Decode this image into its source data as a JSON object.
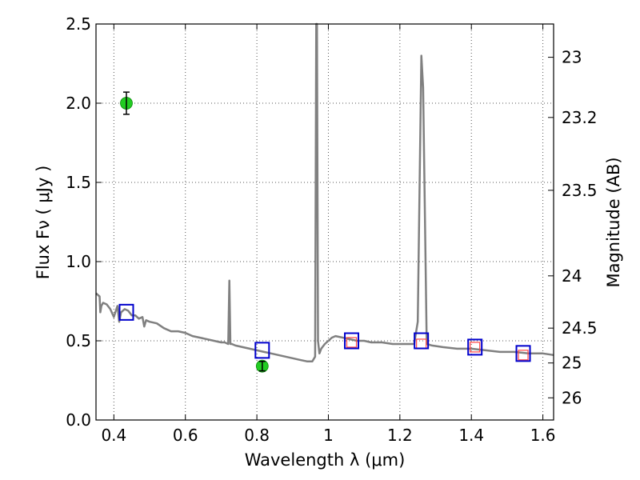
{
  "chart_data": {
    "type": "line",
    "xlabel": "Wavelength  λ (μm)",
    "ylabel": "Flux  Fν  ( μJy )",
    "y2label": "Magnitude (AB)",
    "xlim": [
      0.35,
      1.63
    ],
    "ylim": [
      0.0,
      2.5
    ],
    "grid": true,
    "x_ticks": [
      {
        "value": 0.4,
        "label": "0.4"
      },
      {
        "value": 0.6,
        "label": "0.6"
      },
      {
        "value": 0.8,
        "label": "0.8"
      },
      {
        "value": 1.0,
        "label": "1"
      },
      {
        "value": 1.2,
        "label": "1.2"
      },
      {
        "value": 1.4,
        "label": "1.4"
      },
      {
        "value": 1.6,
        "label": "1.6"
      }
    ],
    "y_ticks": [
      {
        "value": 0.0,
        "label": "0.0"
      },
      {
        "value": 0.5,
        "label": "0.5"
      },
      {
        "value": 1.0,
        "label": "1.0"
      },
      {
        "value": 1.5,
        "label": "1.5"
      },
      {
        "value": 2.0,
        "label": "2.0"
      },
      {
        "value": 2.5,
        "label": "2.5"
      }
    ],
    "y2_ticks": [
      {
        "flux": 2.29,
        "label": "23"
      },
      {
        "flux": 1.91,
        "label": "23.2"
      },
      {
        "flux": 1.45,
        "label": "23.5"
      },
      {
        "flux": 0.91,
        "label": "24"
      },
      {
        "flux": 0.58,
        "label": "24.5"
      },
      {
        "flux": 0.36,
        "label": "25"
      },
      {
        "flux": 0.14,
        "label": "26"
      }
    ],
    "colors": {
      "model": "#808080",
      "model_photometry": "#0000cc",
      "observed_flux": "#22cc22",
      "upper_limit": "#ff4444",
      "grid": "#555555"
    },
    "model_spectrum": {
      "x": [
        0.35,
        0.36,
        0.362,
        0.365,
        0.37,
        0.38,
        0.39,
        0.4,
        0.41,
        0.415,
        0.42,
        0.43,
        0.44,
        0.45,
        0.46,
        0.47,
        0.48,
        0.485,
        0.49,
        0.5,
        0.52,
        0.54,
        0.56,
        0.58,
        0.6,
        0.62,
        0.64,
        0.66,
        0.68,
        0.7,
        0.71,
        0.72,
        0.723,
        0.726,
        0.73,
        0.74,
        0.76,
        0.78,
        0.8,
        0.82,
        0.84,
        0.86,
        0.88,
        0.9,
        0.92,
        0.94,
        0.955,
        0.963,
        0.966,
        0.968,
        0.971,
        0.975,
        0.98,
        0.99,
        1.0,
        1.01,
        1.02,
        1.04,
        1.06,
        1.08,
        1.1,
        1.12,
        1.15,
        1.18,
        1.2,
        1.22,
        1.24,
        1.25,
        1.26,
        1.265,
        1.275,
        1.29,
        1.32,
        1.36,
        1.4,
        1.44,
        1.48,
        1.52,
        1.56,
        1.6,
        1.63
      ],
      "y": [
        0.8,
        0.78,
        0.68,
        0.72,
        0.74,
        0.73,
        0.7,
        0.65,
        0.72,
        0.62,
        0.68,
        0.7,
        0.69,
        0.66,
        0.66,
        0.64,
        0.65,
        0.59,
        0.63,
        0.62,
        0.61,
        0.58,
        0.56,
        0.56,
        0.55,
        0.53,
        0.52,
        0.51,
        0.5,
        0.49,
        0.49,
        0.48,
        0.88,
        0.48,
        0.48,
        0.47,
        0.46,
        0.45,
        0.44,
        0.43,
        0.42,
        0.41,
        0.4,
        0.39,
        0.38,
        0.37,
        0.37,
        0.4,
        2.5,
        2.5,
        0.5,
        0.42,
        0.45,
        0.48,
        0.5,
        0.52,
        0.53,
        0.52,
        0.51,
        0.5,
        0.5,
        0.49,
        0.49,
        0.48,
        0.48,
        0.48,
        0.48,
        0.62,
        2.3,
        2.1,
        0.48,
        0.47,
        0.46,
        0.45,
        0.45,
        0.44,
        0.43,
        0.43,
        0.42,
        0.42,
        0.41
      ]
    },
    "model_photometry": {
      "x": [
        0.435,
        0.815,
        1.065,
        1.26,
        1.41,
        1.545
      ],
      "y": [
        0.68,
        0.44,
        0.5,
        0.5,
        0.46,
        0.42
      ]
    },
    "upper_limits": {
      "x": [
        1.065,
        1.26,
        1.41,
        1.545
      ],
      "y": [
        0.49,
        0.48,
        0.46,
        0.41
      ]
    },
    "observed": {
      "x": [
        0.435,
        0.815
      ],
      "y": [
        2.0,
        0.34
      ],
      "yerr": [
        0.07,
        0.03
      ]
    }
  }
}
